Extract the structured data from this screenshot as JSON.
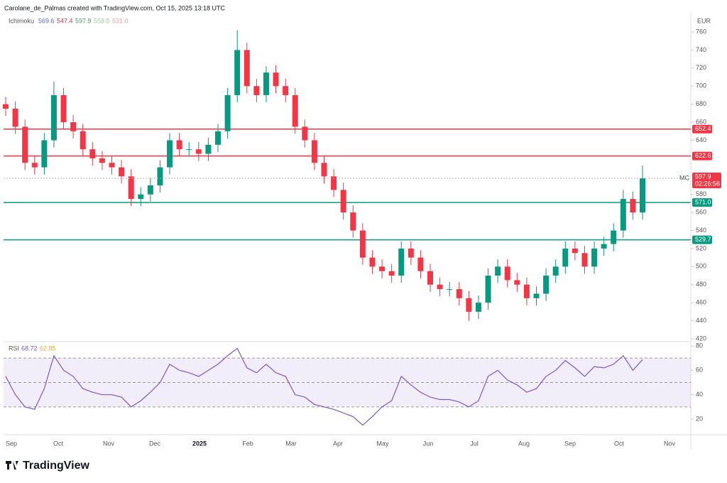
{
  "chart_data": [
    {
      "type": "candlestick",
      "title": "Carolane_de_Palmas created with TradingView.com, Oct 15, 2025 13:18 UTC",
      "currency": "EUR",
      "indicator": {
        "name": "Ichimoku",
        "values": [
          569.6,
          547.4,
          597.9,
          558.5,
          {
            "value": 531,
            "label": "531.0"
          }
        ],
        "colors": [
          "#5b6bd6",
          "#b0405a",
          "#4f9a5b",
          "#9fcf9f",
          "#f0a0a8"
        ]
      },
      "up_color": "#089981",
      "down_color": "#f23645",
      "open": [
        680,
        675,
        655,
        615,
        610,
        640,
        690,
        660,
        650,
        630,
        620,
        615,
        610,
        600,
        575,
        580,
        590,
        610,
        640,
        630,
        630,
        625,
        635,
        650,
        690,
        740,
        700,
        690,
        715,
        700,
        690,
        655,
        640,
        615,
        600,
        585,
        560,
        540,
        510,
        500,
        495,
        490,
        520,
        510,
        495,
        480,
        475,
        475,
        465,
        450,
        460,
        490,
        500,
        485,
        480,
        465,
        470,
        490,
        500,
        520,
        515,
        500,
        520,
        525,
        540,
        575,
        560
      ],
      "high": [
        688,
        683,
        663,
        623,
        648,
        705,
        698,
        668,
        658,
        638,
        628,
        623,
        618,
        608,
        588,
        598,
        618,
        648,
        648,
        638,
        638,
        643,
        658,
        698,
        762,
        748,
        708,
        722,
        723,
        708,
        698,
        663,
        648,
        623,
        608,
        593,
        568,
        548,
        518,
        508,
        503,
        528,
        528,
        518,
        503,
        488,
        483,
        483,
        473,
        468,
        498,
        508,
        508,
        493,
        488,
        478,
        498,
        508,
        528,
        528,
        523,
        528,
        533,
        548,
        585,
        583,
        612
      ],
      "low": [
        667,
        647,
        607,
        602,
        602,
        632,
        652,
        642,
        622,
        612,
        607,
        602,
        592,
        567,
        567,
        572,
        582,
        602,
        622,
        622,
        617,
        617,
        627,
        642,
        682,
        692,
        682,
        682,
        692,
        682,
        647,
        632,
        607,
        592,
        577,
        552,
        532,
        502,
        492,
        487,
        482,
        482,
        502,
        487,
        472,
        467,
        467,
        457,
        440,
        442,
        452,
        482,
        477,
        472,
        457,
        457,
        462,
        482,
        492,
        507,
        492,
        492,
        512,
        517,
        532,
        552,
        552
      ],
      "close": [
        675,
        655,
        615,
        610,
        640,
        690,
        660,
        650,
        630,
        620,
        615,
        610,
        600,
        575,
        580,
        590,
        610,
        640,
        630,
        630,
        625,
        635,
        650,
        690,
        740,
        700,
        690,
        715,
        700,
        690,
        655,
        640,
        615,
        600,
        585,
        560,
        540,
        510,
        500,
        495,
        490,
        520,
        510,
        495,
        480,
        475,
        475,
        465,
        450,
        460,
        490,
        500,
        485,
        480,
        465,
        470,
        490,
        500,
        520,
        515,
        500,
        520,
        525,
        540,
        575,
        560,
        597.9
      ],
      "ylim": [
        420,
        760
      ],
      "yticks": [
        420,
        440,
        460,
        480,
        500,
        520,
        540,
        560,
        580,
        640,
        660,
        680,
        700,
        720,
        740,
        760
      ],
      "levels": [
        {
          "value": 652.4,
          "label": "652.4",
          "color": "#f23645"
        },
        {
          "value": 622.6,
          "label": "622.6",
          "color": "#f23645"
        },
        {
          "value": 571,
          "label": "571.0",
          "color": "#089981"
        },
        {
          "value": 529.7,
          "label": "529.7",
          "color": "#089981"
        }
      ],
      "last_price": {
        "symbol": "MC",
        "value": 597.9,
        "countdown": "02:26:56",
        "color": "#f23645"
      }
    },
    {
      "type": "line",
      "name": "RSI",
      "legend_values": [
        68.72,
        62.85
      ],
      "color": "#7e57c2",
      "values": [
        55,
        40,
        30,
        28,
        45,
        72,
        60,
        55,
        45,
        42,
        40,
        40,
        38,
        30,
        35,
        42,
        50,
        65,
        60,
        58,
        55,
        60,
        65,
        72,
        78,
        62,
        58,
        65,
        58,
        55,
        40,
        38,
        32,
        30,
        28,
        25,
        22,
        15,
        22,
        30,
        35,
        55,
        48,
        42,
        38,
        36,
        36,
        34,
        30,
        35,
        55,
        60,
        52,
        48,
        42,
        45,
        55,
        60,
        68,
        62,
        55,
        63,
        62,
        65,
        72,
        60,
        68.72
      ],
      "ylim": [
        10,
        82
      ],
      "yticks": [
        20,
        40,
        60,
        80
      ],
      "bands": [
        70,
        50,
        30
      ],
      "xticks": [
        "Sep",
        "Oct",
        "Nov",
        "Dec",
        "2025",
        "Feb",
        "Mar",
        "Apr",
        "May",
        "Jun",
        "Jul",
        "Aug",
        "Sep",
        "Oct",
        "Nov"
      ]
    }
  ],
  "brand": "TradingView"
}
